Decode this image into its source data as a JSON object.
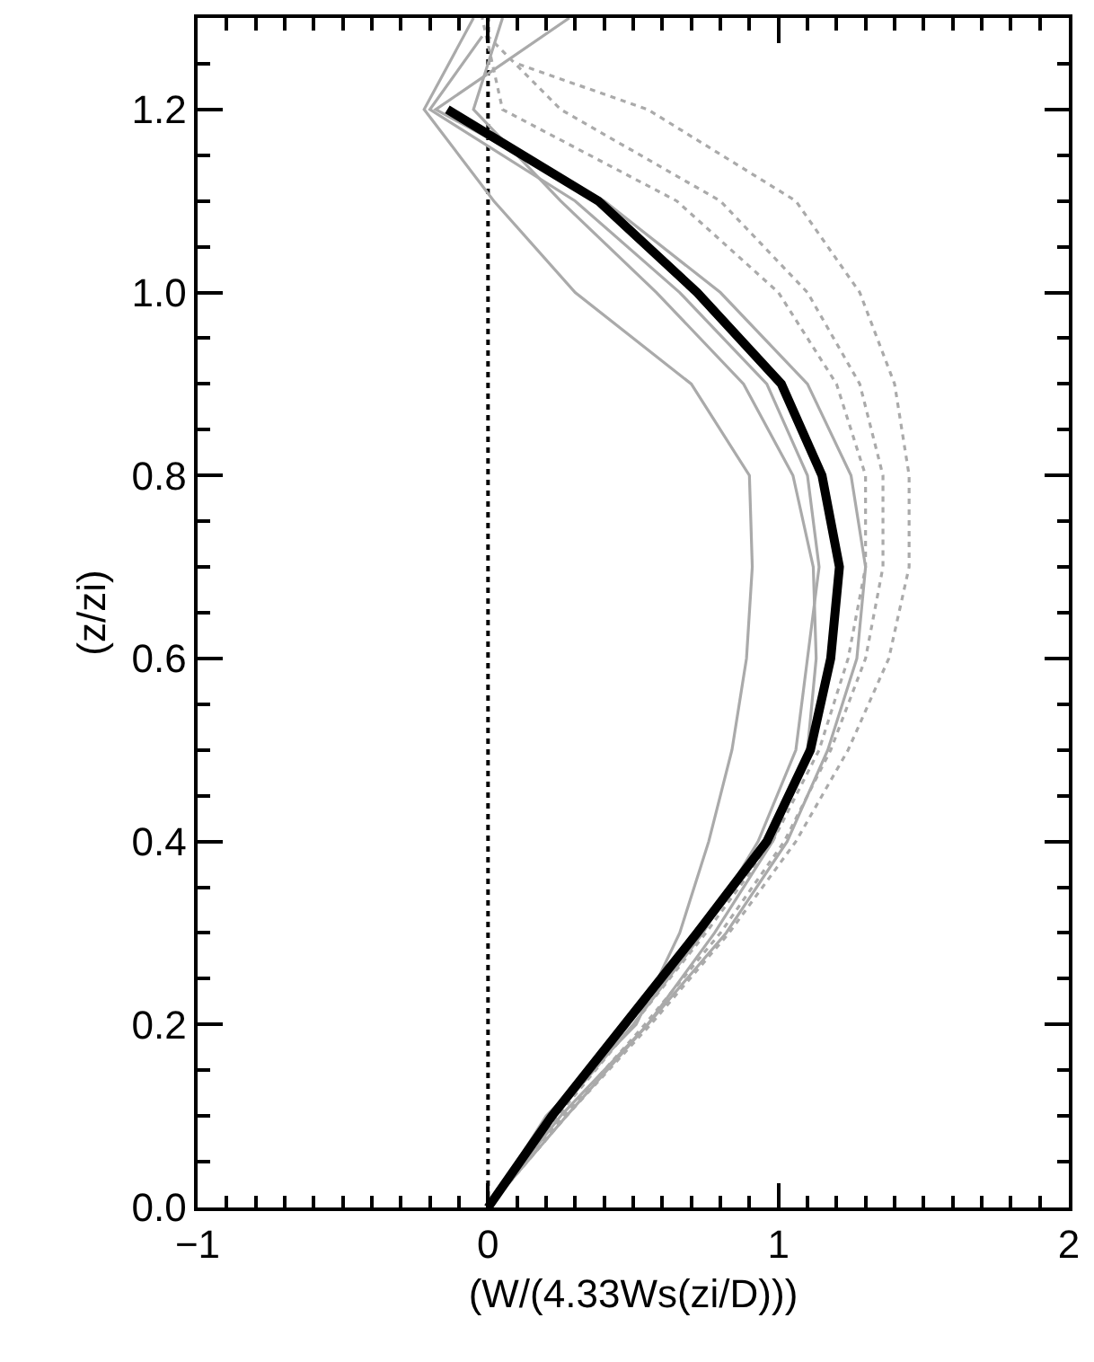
{
  "chart_data": {
    "type": "line",
    "xlabel": "(W/(4.33Ws(zi/D)))",
    "ylabel": "(z/zi)",
    "xlim": [
      -1,
      2
    ],
    "ylim": [
      0,
      1.3
    ],
    "xticks": [
      {
        "value": -1,
        "label": "−1"
      },
      0,
      1,
      2,
      {
        "value": -0.9,
        "label": null
      },
      {
        "value": -0.8,
        "label": null
      },
      {
        "value": -0.7,
        "label": null
      },
      {
        "value": -0.6,
        "label": null
      },
      {
        "value": -0.5,
        "label": null
      },
      {
        "value": -0.4,
        "label": null
      },
      {
        "value": -0.3,
        "label": null
      },
      {
        "value": -0.2,
        "label": null
      },
      {
        "value": -0.1,
        "label": null
      },
      {
        "value": 0.1,
        "label": null
      },
      {
        "value": 0.2,
        "label": null
      },
      {
        "value": 0.3,
        "label": null
      },
      {
        "value": 0.4,
        "label": null
      },
      {
        "value": 0.5,
        "label": null
      },
      {
        "value": 0.6,
        "label": null
      },
      {
        "value": 0.7,
        "label": null
      },
      {
        "value": 0.8,
        "label": null
      },
      {
        "value": 0.9,
        "label": null
      },
      {
        "value": 1.1,
        "label": null
      },
      {
        "value": 1.2,
        "label": null
      },
      {
        "value": 1.3,
        "label": null
      },
      {
        "value": 1.4,
        "label": null
      },
      {
        "value": 1.5,
        "label": null
      },
      {
        "value": 1.6,
        "label": null
      },
      {
        "value": 1.7,
        "label": null
      },
      {
        "value": 1.8,
        "label": null
      },
      {
        "value": 1.9,
        "label": null
      }
    ],
    "yticks": [
      {
        "value": 0,
        "label": "0.0"
      },
      {
        "value": 0.2,
        "label": "0.2"
      },
      {
        "value": 0.4,
        "label": "0.4"
      },
      {
        "value": 0.6,
        "label": "0.6"
      },
      {
        "value": 0.8,
        "label": "0.8"
      },
      {
        "value": 1.0,
        "label": "1.0"
      },
      {
        "value": 1.2,
        "label": "1.2"
      },
      {
        "value": 0.05,
        "label": null
      },
      {
        "value": 0.1,
        "label": null
      },
      {
        "value": 0.15,
        "label": null
      },
      {
        "value": 0.25,
        "label": null
      },
      {
        "value": 0.3,
        "label": null
      },
      {
        "value": 0.35,
        "label": null
      },
      {
        "value": 0.45,
        "label": null
      },
      {
        "value": 0.5,
        "label": null
      },
      {
        "value": 0.55,
        "label": null
      },
      {
        "value": 0.65,
        "label": null
      },
      {
        "value": 0.7,
        "label": null
      },
      {
        "value": 0.75,
        "label": null
      },
      {
        "value": 0.85,
        "label": null
      },
      {
        "value": 0.9,
        "label": null
      },
      {
        "value": 0.95,
        "label": null
      },
      {
        "value": 1.05,
        "label": null
      },
      {
        "value": 1.1,
        "label": null
      },
      {
        "value": 1.15,
        "label": null
      },
      {
        "value": 1.25,
        "label": null
      }
    ],
    "grid": false,
    "marker": "none",
    "ref_lines": [
      {
        "axis": "x",
        "value": 0,
        "color": "#000000",
        "line_style": "dotted"
      }
    ],
    "series": [
      {
        "color": "#aaaaaa",
        "line_style": "dotted",
        "x": [
          0,
          0.27,
          0.56,
          0.83,
          1.06,
          1.24,
          1.38,
          1.45,
          1.45,
          1.4,
          1.28,
          1.06,
          0.55,
          0.1
        ],
        "values": [
          0,
          0.1,
          0.2,
          0.3,
          0.4,
          0.5,
          0.6,
          0.7,
          0.8,
          0.9,
          1.0,
          1.1,
          1.2,
          1.25
        ]
      },
      {
        "color": "#aaaaaa",
        "line_style": "dotted",
        "x": [
          0,
          0.26,
          0.54,
          0.8,
          1.02,
          1.18,
          1.3,
          1.36,
          1.36,
          1.28,
          1.1,
          0.8,
          0.25,
          0.0
        ],
        "values": [
          0,
          0.1,
          0.2,
          0.3,
          0.4,
          0.5,
          0.6,
          0.7,
          0.8,
          0.9,
          1.0,
          1.1,
          1.2,
          1.28
        ]
      },
      {
        "color": "#aaaaaa",
        "line_style": "dotted",
        "x": [
          0,
          0.24,
          0.5,
          0.75,
          0.98,
          1.14,
          1.24,
          1.3,
          1.3,
          1.2,
          1.0,
          0.65,
          0.05,
          -0.02
        ],
        "values": [
          0,
          0.1,
          0.2,
          0.3,
          0.4,
          0.5,
          0.6,
          0.7,
          0.8,
          0.9,
          1.0,
          1.1,
          1.2,
          1.3
        ]
      },
      {
        "color": "#aaaaaa",
        "line_style": "solid",
        "x": [
          0,
          0.2,
          0.51,
          0.66,
          0.76,
          0.84,
          0.89,
          0.91,
          0.9,
          0.7,
          0.3,
          0.02,
          -0.22,
          -0.05
        ],
        "values": [
          0,
          0.1,
          0.2,
          0.3,
          0.4,
          0.5,
          0.6,
          0.7,
          0.8,
          0.9,
          1.0,
          1.1,
          1.2,
          1.3
        ]
      },
      {
        "color": "#aaaaaa",
        "line_style": "solid",
        "x": [
          0,
          0.25,
          0.55,
          0.78,
          0.98,
          1.1,
          1.13,
          1.12,
          1.05,
          0.88,
          0.58,
          0.25,
          -0.05,
          0.05
        ],
        "values": [
          0,
          0.1,
          0.2,
          0.3,
          0.4,
          0.5,
          0.6,
          0.7,
          0.8,
          0.9,
          1.0,
          1.1,
          1.2,
          1.3
        ]
      },
      {
        "color": "#aaaaaa",
        "line_style": "solid",
        "x": [
          0,
          0.27,
          0.55,
          0.82,
          1.03,
          1.17,
          1.27,
          1.3,
          1.25,
          1.1,
          0.8,
          0.4,
          -0.18,
          0.28
        ],
        "values": [
          0,
          0.1,
          0.2,
          0.3,
          0.4,
          0.5,
          0.6,
          0.7,
          0.8,
          0.9,
          1.0,
          1.1,
          1.2,
          1.3
        ]
      },
      {
        "color": "#aaaaaa",
        "line_style": "solid",
        "x": [
          0,
          0.23,
          0.5,
          0.74,
          0.93,
          1.06,
          1.1,
          1.14,
          1.1,
          0.96,
          0.66,
          0.3,
          -0.2,
          -0.02
        ],
        "values": [
          0,
          0.1,
          0.2,
          0.3,
          0.4,
          0.5,
          0.6,
          0.7,
          0.8,
          0.9,
          1.0,
          1.1,
          1.2,
          1.28
        ]
      },
      {
        "color": "#000000",
        "line_style": "solid",
        "x": [
          0,
          0.22,
          0.47,
          0.72,
          0.96,
          1.11,
          1.18,
          1.21,
          1.15,
          1.01,
          0.72,
          0.38,
          -0.14
        ],
        "values": [
          0,
          0.1,
          0.2,
          0.3,
          0.4,
          0.5,
          0.6,
          0.7,
          0.8,
          0.9,
          1.0,
          1.1,
          1.2
        ]
      }
    ]
  }
}
